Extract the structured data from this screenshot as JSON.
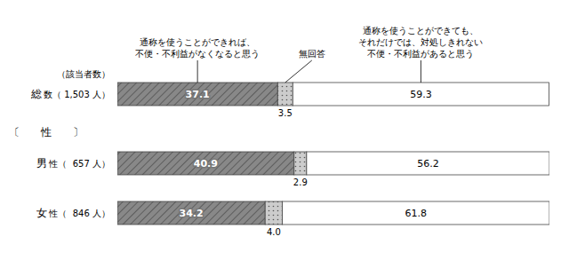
{
  "chart_data": {
    "type": "bar",
    "orientation": "horizontal",
    "stacked": true,
    "data_labels": true,
    "tick_labels": false,
    "categories": [
      "総",
      "男",
      "女"
    ],
    "category_sublabels": [
      "数（ 1,503 人）",
      "性（  657 人）",
      "性（  846 人）"
    ],
    "section_label": "〔　　性　　〕",
    "count_label": "（該当者数）",
    "series": [
      {
        "name": "通称を使うことができれば、\n不便・不利益がなくなると思う",
        "color": "#888888",
        "values": [
          37.1,
          40.9,
          34.2
        ]
      },
      {
        "name": "無回答",
        "color": "#cccccc",
        "values": [
          3.5,
          2.9,
          4.0
        ],
        "value_labels": [
          "3.5",
          "2.9",
          "4.0"
        ]
      },
      {
        "name": "通称を使うことができても、\nそれだけでは、対処しきれない\n不便・不利益があると思う",
        "color": "#ffffff",
        "values": [
          59.3,
          56.2,
          61.8
        ]
      }
    ],
    "xlim": [
      0,
      100
    ]
  }
}
